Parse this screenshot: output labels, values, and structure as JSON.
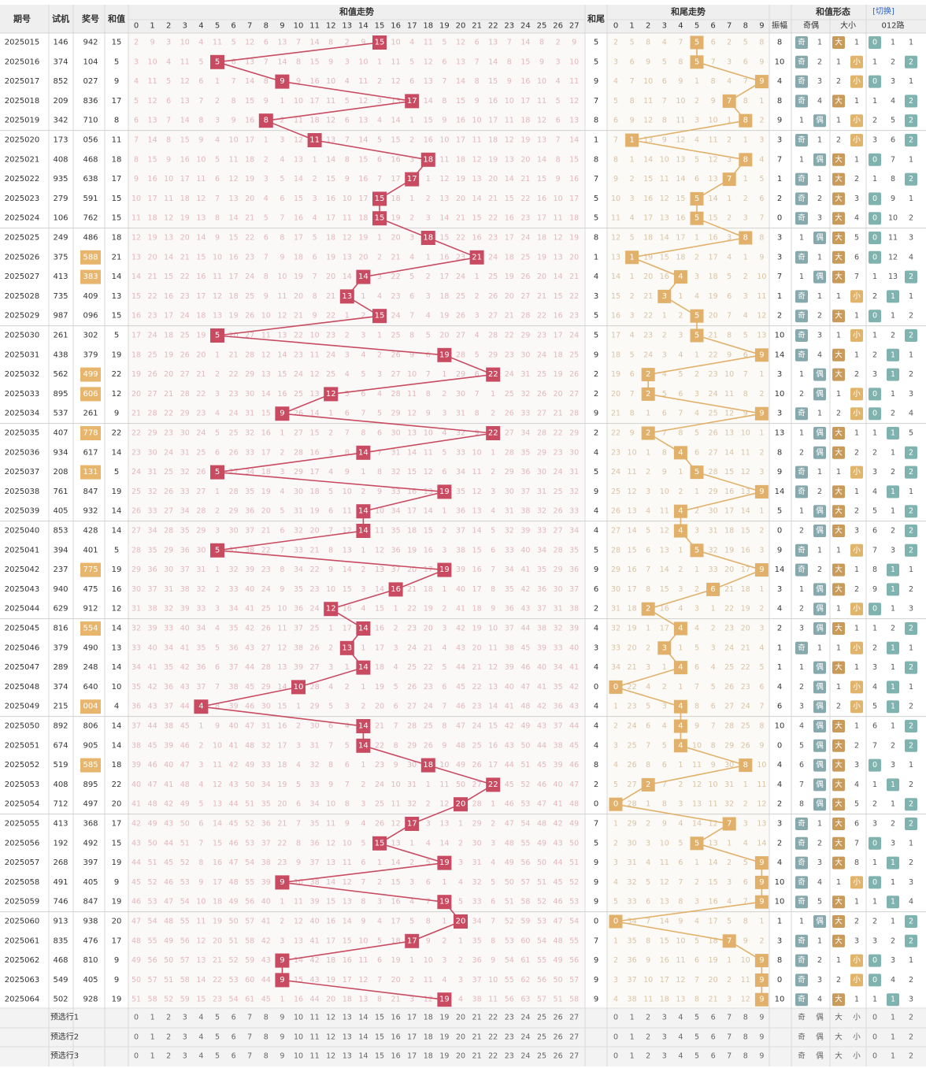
{
  "header": {
    "period": "期号",
    "machine": "试机",
    "prize": "奖号",
    "sum": "和值",
    "sum_trend": "和值走势",
    "tail": "和尾",
    "tail_trend": "和尾走势",
    "shape": "和值形态",
    "switch": "[切换]",
    "amplitude": "振幅",
    "odd_even": "奇偶",
    "big_small": "大小",
    "road": "012路",
    "odd": "奇",
    "even": "偶",
    "big": "大",
    "small": "小"
  },
  "footer": {
    "labels": [
      "预选行1",
      "预选行2",
      "预选行3"
    ],
    "oe": [
      "奇",
      "偶"
    ],
    "bs": [
      "大",
      "小"
    ],
    "road": [
      "0",
      "1",
      "2"
    ]
  },
  "colors": {
    "sum_mark": "#c94b61",
    "tail_mark": "#e1b16b",
    "odd_even_badge": "#86a9ad",
    "big_badge": "#c99b5a",
    "small_badge": "#e0b46b",
    "road_badge": "#7fb3b0",
    "header_bg": "#efefef"
  },
  "chart_data": {
    "type": "table",
    "columns": [
      "期号",
      "试机",
      "奖号",
      "和值",
      "和尾",
      "振幅"
    ],
    "rows": [
      [
        "2025015",
        "146",
        "942",
        15,
        5,
        8
      ],
      [
        "2025016",
        "374",
        "104",
        5,
        5,
        10
      ],
      [
        "2025017",
        "852",
        "027",
        9,
        9,
        4
      ],
      [
        "2025018",
        "209",
        "836",
        17,
        7,
        8
      ],
      [
        "2025019",
        "342",
        "710",
        8,
        8,
        9
      ],
      [
        "2025020",
        "173",
        "056",
        11,
        1,
        3
      ],
      [
        "2025021",
        "408",
        "468",
        18,
        8,
        7
      ],
      [
        "2025022",
        "935",
        "638",
        17,
        7,
        1
      ],
      [
        "2025023",
        "279",
        "591",
        15,
        5,
        2
      ],
      [
        "2025024",
        "106",
        "762",
        15,
        5,
        0
      ],
      [
        "2025025",
        "249",
        "486",
        18,
        8,
        3
      ],
      [
        "2025026",
        "375",
        "588",
        21,
        1,
        3
      ],
      [
        "2025027",
        "413",
        "383",
        14,
        4,
        7
      ],
      [
        "2025028",
        "735",
        "409",
        13,
        3,
        1
      ],
      [
        "2025029",
        "987",
        "096",
        15,
        5,
        2
      ],
      [
        "2025030",
        "261",
        "302",
        5,
        5,
        10
      ],
      [
        "2025031",
        "438",
        "379",
        19,
        9,
        14
      ],
      [
        "2025032",
        "562",
        "499",
        22,
        2,
        3
      ],
      [
        "2025033",
        "895",
        "606",
        12,
        2,
        10
      ],
      [
        "2025034",
        "537",
        "261",
        9,
        9,
        3
      ],
      [
        "2025035",
        "407",
        "778",
        22,
        2,
        13
      ],
      [
        "2025036",
        "934",
        "617",
        14,
        4,
        8
      ],
      [
        "2025037",
        "208",
        "131",
        5,
        5,
        9
      ],
      [
        "2025038",
        "761",
        "847",
        19,
        9,
        14
      ],
      [
        "2025039",
        "405",
        "932",
        14,
        4,
        5
      ],
      [
        "2025040",
        "853",
        "428",
        14,
        4,
        0
      ],
      [
        "2025041",
        "394",
        "401",
        5,
        5,
        9
      ],
      [
        "2025042",
        "237",
        "775",
        19,
        9,
        14
      ],
      [
        "2025043",
        "940",
        "475",
        16,
        6,
        3
      ],
      [
        "2025044",
        "629",
        "912",
        12,
        2,
        4
      ],
      [
        "2025045",
        "816",
        "554",
        14,
        4,
        2
      ],
      [
        "2025046",
        "379",
        "490",
        13,
        3,
        1
      ],
      [
        "2025047",
        "289",
        "248",
        14,
        4,
        1
      ],
      [
        "2025048",
        "374",
        "640",
        10,
        0,
        4
      ],
      [
        "2025049",
        "215",
        "004",
        4,
        4,
        6
      ],
      [
        "2025050",
        "892",
        "806",
        14,
        4,
        10
      ],
      [
        "2025051",
        "674",
        "905",
        14,
        4,
        0
      ],
      [
        "2025052",
        "519",
        "585",
        18,
        8,
        4
      ],
      [
        "2025053",
        "408",
        "895",
        22,
        2,
        4
      ],
      [
        "2025054",
        "712",
        "497",
        20,
        0,
        2
      ],
      [
        "2025055",
        "413",
        "368",
        17,
        7,
        3
      ],
      [
        "2025056",
        "192",
        "492",
        15,
        5,
        2
      ],
      [
        "2025057",
        "268",
        "397",
        19,
        9,
        4
      ],
      [
        "2025058",
        "491",
        "405",
        9,
        9,
        10
      ],
      [
        "2025059",
        "746",
        "847",
        19,
        9,
        10
      ],
      [
        "2025060",
        "913",
        "938",
        20,
        0,
        1
      ],
      [
        "2025061",
        "835",
        "476",
        17,
        7,
        3
      ],
      [
        "2025062",
        "468",
        "810",
        9,
        9,
        8
      ],
      [
        "2025063",
        "549",
        "405",
        9,
        9,
        0
      ],
      [
        "2025064",
        "502",
        "928",
        19,
        9,
        10
      ]
    ],
    "sum_axis": [
      0,
      27
    ],
    "tail_axis": [
      0,
      9
    ],
    "big_threshold": 14
  }
}
